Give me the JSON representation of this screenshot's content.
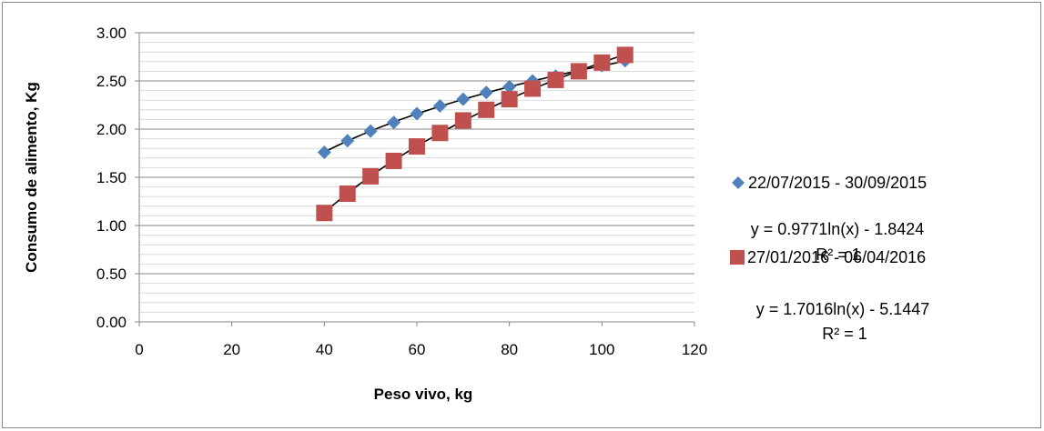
{
  "chart_data": {
    "type": "scatter",
    "title": "",
    "xlabel": "Peso vivo, kg",
    "ylabel": "Consumo de alimento, Kg",
    "xlim": [
      0,
      120
    ],
    "ylim": [
      0,
      3
    ],
    "x_ticks": [
      "0",
      "20",
      "40",
      "60",
      "80",
      "100",
      "120"
    ],
    "y_ticks": [
      "0.00",
      "0.50",
      "1.00",
      "1.50",
      "2.00",
      "2.50",
      "3.00"
    ],
    "grid": "horizontal major and minor lines",
    "legend_position": "right",
    "series": [
      {
        "name": "22/07/2015 - 30/09/2015",
        "marker": "diamond",
        "color": "#4F81BD",
        "x": [
          40,
          45,
          50,
          55,
          60,
          65,
          70,
          75,
          80,
          85,
          90,
          95,
          100,
          105
        ],
        "y": [
          1.76,
          1.88,
          1.98,
          2.07,
          2.16,
          2.24,
          2.31,
          2.38,
          2.44,
          2.5,
          2.55,
          2.61,
          2.66,
          2.71
        ],
        "trendline": {
          "type": "logarithmic",
          "a": 0.9771,
          "b": -1.8424,
          "equation": "y = 0.9771ln(x) - 1.8424",
          "r2": "R² = 1"
        }
      },
      {
        "name": "27/01/2016 - 06/04/2016",
        "marker": "square",
        "color": "#C0504D",
        "x": [
          40,
          45,
          50,
          55,
          60,
          65,
          70,
          75,
          80,
          85,
          90,
          95,
          100,
          105
        ],
        "y": [
          1.13,
          1.33,
          1.51,
          1.67,
          1.82,
          1.96,
          2.09,
          2.2,
          2.31,
          2.42,
          2.51,
          2.6,
          2.69,
          2.77
        ],
        "trendline": {
          "type": "logarithmic",
          "a": 1.7016,
          "b": -5.1447,
          "equation": "y = 1.7016ln(x) - 5.1447",
          "r2": "R² = 1"
        }
      }
    ]
  }
}
